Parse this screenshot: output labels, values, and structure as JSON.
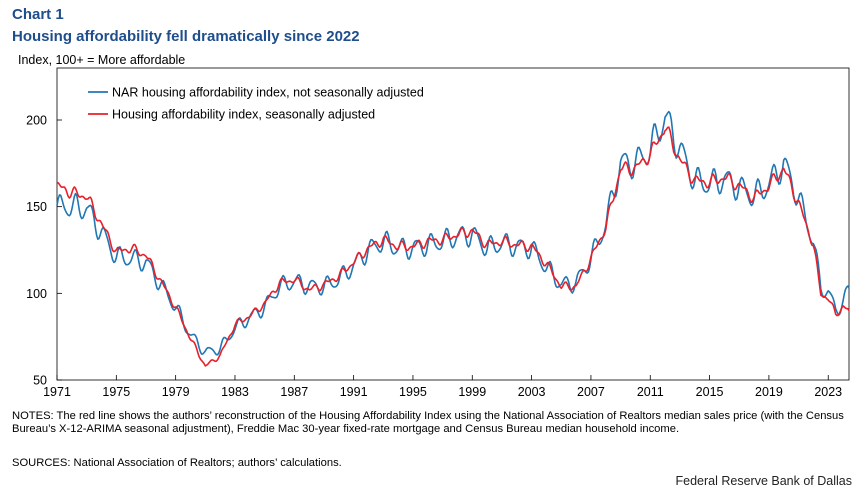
{
  "header": {
    "chart_number": "Chart 1",
    "title": "Housing affordability fell dramatically since 2022",
    "ylabel": "Index,  100+ = More affordable"
  },
  "chart_data": {
    "type": "line",
    "title": "Housing affordability fell dramatically since 2022",
    "xlabel": "",
    "ylabel": "Index,  100+ = More affordable",
    "xlim": [
      1971,
      2024.4
    ],
    "ylim": [
      50,
      230
    ],
    "xticks": [
      "1971",
      "1975",
      "1979",
      "1983",
      "1987",
      "1991",
      "1995",
      "1999",
      "2003",
      "2007",
      "2011",
      "2015",
      "2019",
      "2023"
    ],
    "yticks": [
      "50",
      "100",
      "150",
      "200"
    ],
    "legend_position": "top-left",
    "series": [
      {
        "name": "NAR housing affordability index, not seasonally adjusted",
        "color": "#1f77b4",
        "seasonal": true,
        "points": [
          [
            1971,
            150
          ],
          [
            1972,
            150
          ],
          [
            1973,
            149
          ],
          [
            1974,
            135
          ],
          [
            1975,
            121
          ],
          [
            1976,
            120
          ],
          [
            1977,
            118
          ],
          [
            1978,
            105
          ],
          [
            1979,
            92
          ],
          [
            1980,
            76
          ],
          [
            1981,
            66
          ],
          [
            1982,
            68
          ],
          [
            1983,
            80
          ],
          [
            1984,
            86
          ],
          [
            1985,
            92
          ],
          [
            1986,
            104
          ],
          [
            1987,
            107
          ],
          [
            1988,
            104
          ],
          [
            1989,
            104
          ],
          [
            1990,
            108
          ],
          [
            1991,
            116
          ],
          [
            1992,
            125
          ],
          [
            1993,
            130
          ],
          [
            1994,
            126
          ],
          [
            1995,
            126
          ],
          [
            1996,
            128
          ],
          [
            1997,
            130
          ],
          [
            1998,
            133
          ],
          [
            1999,
            134
          ],
          [
            2000,
            126
          ],
          [
            2001,
            129
          ],
          [
            2002,
            127
          ],
          [
            2003,
            126
          ],
          [
            2004,
            115
          ],
          [
            2005,
            105
          ],
          [
            2006,
            106
          ],
          [
            2007,
            120
          ],
          [
            2008,
            140
          ],
          [
            2009,
            175
          ],
          [
            2010,
            175
          ],
          [
            2011,
            183
          ],
          [
            2012,
            202
          ],
          [
            2013,
            183
          ],
          [
            2014,
            165
          ],
          [
            2015,
            163
          ],
          [
            2016,
            166
          ],
          [
            2017,
            161
          ],
          [
            2018,
            156
          ],
          [
            2019,
            163
          ],
          [
            2020,
            175
          ],
          [
            2021,
            155
          ],
          [
            2022,
            130
          ],
          [
            2022.5,
            103
          ],
          [
            2023,
            101
          ],
          [
            2023.5,
            90
          ],
          [
            2024,
            95
          ],
          [
            2024.4,
            103
          ]
        ]
      },
      {
        "name": "Housing affordability index, seasonally adjusted",
        "color": "#e8202a",
        "seasonal": false,
        "points": [
          [
            1971,
            162
          ],
          [
            1972,
            158
          ],
          [
            1973,
            156
          ],
          [
            1974,
            140
          ],
          [
            1975,
            124
          ],
          [
            1976,
            126
          ],
          [
            1977,
            122
          ],
          [
            1978,
            107
          ],
          [
            1979,
            92
          ],
          [
            1980,
            74
          ],
          [
            1981,
            58
          ],
          [
            1982,
            64
          ],
          [
            1983,
            82
          ],
          [
            1984,
            87
          ],
          [
            1985,
            94
          ],
          [
            1986,
            106
          ],
          [
            1987,
            108
          ],
          [
            1988,
            102
          ],
          [
            1989,
            105
          ],
          [
            1990,
            110
          ],
          [
            1991,
            118
          ],
          [
            1992,
            126
          ],
          [
            1993,
            131
          ],
          [
            1994,
            127
          ],
          [
            1995,
            127
          ],
          [
            1996,
            130
          ],
          [
            1997,
            131
          ],
          [
            1998,
            134
          ],
          [
            1999,
            136
          ],
          [
            2000,
            128
          ],
          [
            2001,
            130
          ],
          [
            2002,
            128
          ],
          [
            2003,
            127
          ],
          [
            2004,
            117
          ],
          [
            2005,
            104
          ],
          [
            2006,
            104
          ],
          [
            2007,
            120
          ],
          [
            2008,
            138
          ],
          [
            2009,
            172
          ],
          [
            2010,
            172
          ],
          [
            2011,
            180
          ],
          [
            2012,
            196
          ],
          [
            2013,
            177
          ],
          [
            2014,
            165
          ],
          [
            2015,
            164
          ],
          [
            2016,
            167
          ],
          [
            2017,
            162
          ],
          [
            2018,
            155
          ],
          [
            2019,
            162
          ],
          [
            2020,
            172
          ],
          [
            2021,
            152
          ],
          [
            2022,
            128
          ],
          [
            2022.5,
            100
          ],
          [
            2023,
            97
          ],
          [
            2023.5,
            88
          ],
          [
            2024,
            92
          ],
          [
            2024.4,
            90
          ]
        ]
      }
    ]
  },
  "footer": {
    "notes": "NOTES: The red line shows the authors’ reconstruction of the Housing Affordability Index using the National Association of Realtors median sales price (with the Census Bureau’s X-12-ARIMA  seasonal adjustment), Freddie Mac 30-year fixed-rate mortgage and Census Bureau median household income.",
    "sources": "SOURCES: National Association of Realtors; authors’ calculations.",
    "org": "Federal Reserve Bank of Dallas"
  }
}
